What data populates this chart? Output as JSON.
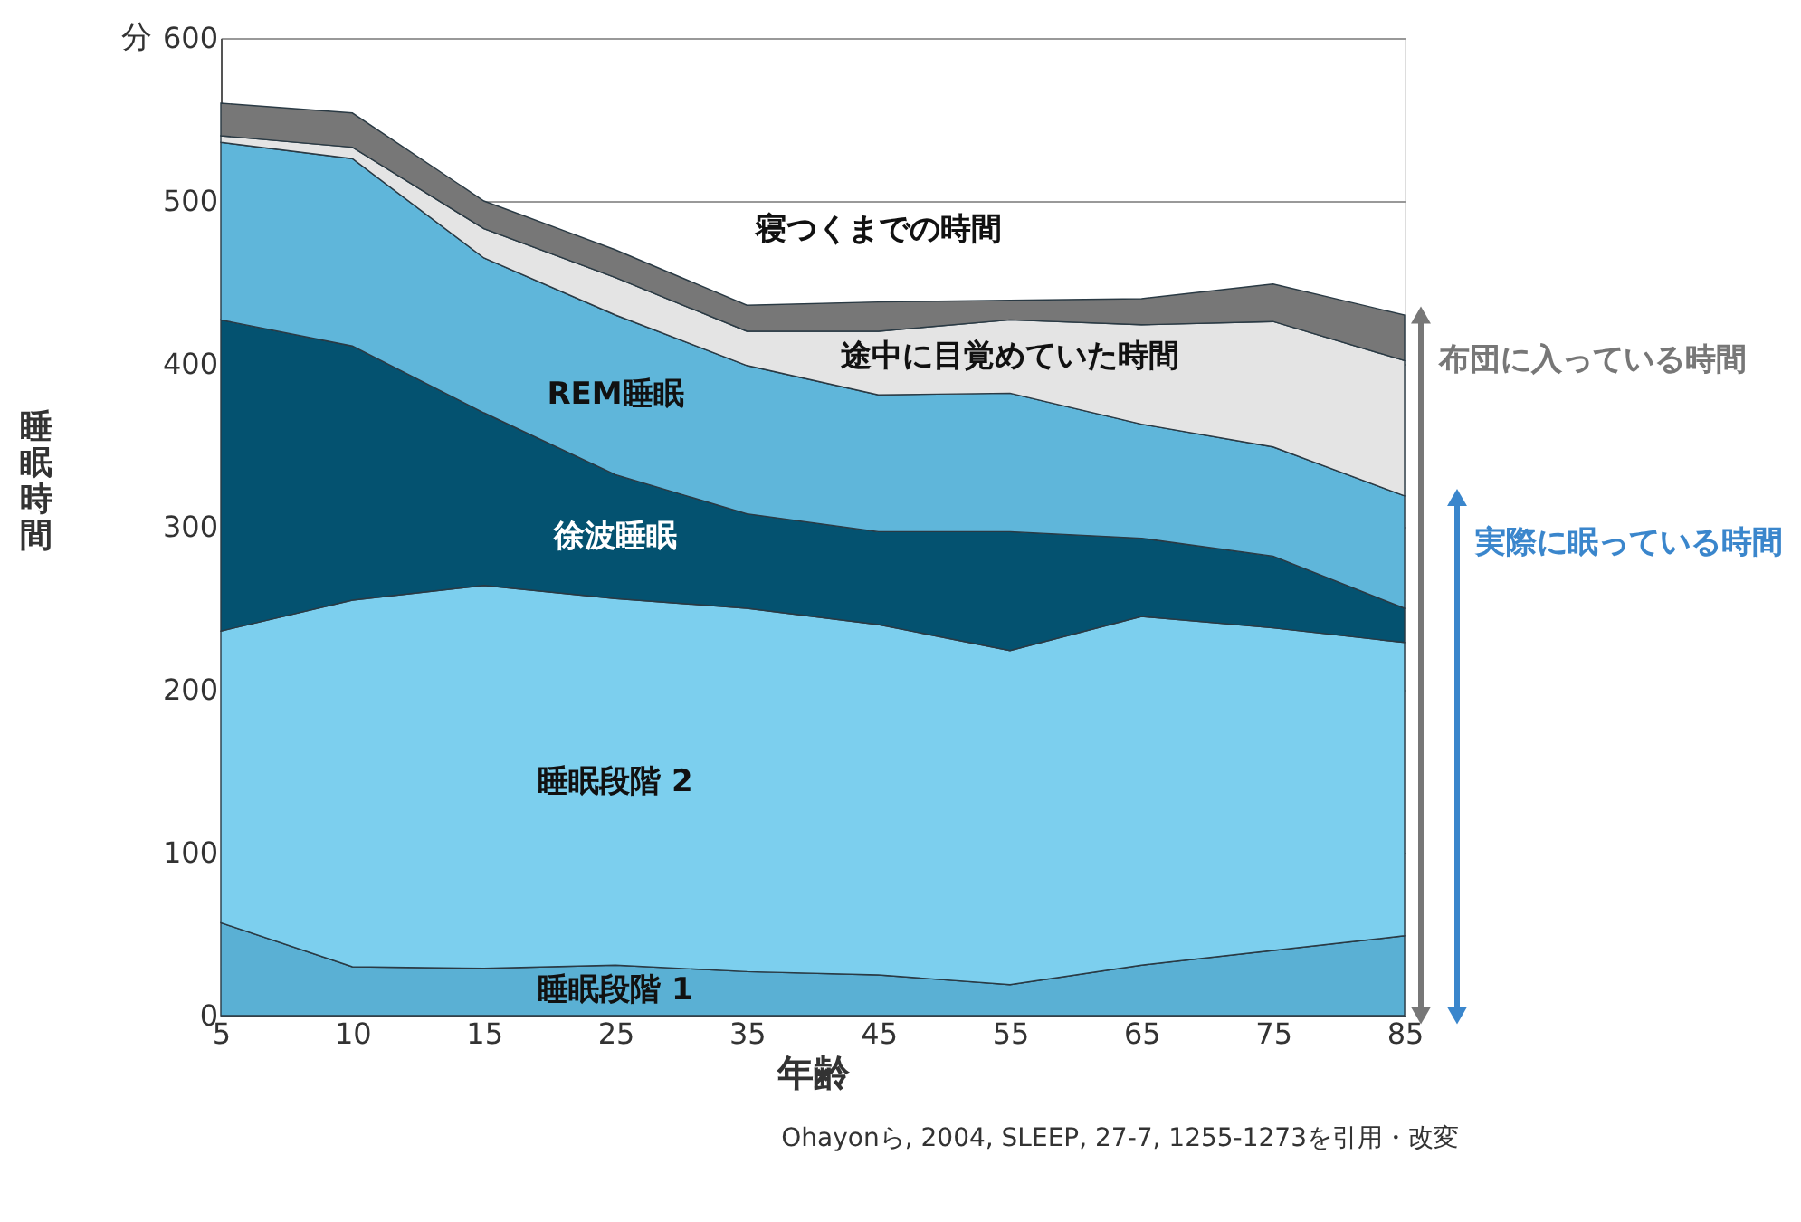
{
  "chart_data": {
    "type": "area",
    "stacked": true,
    "xlabel": "年齢",
    "ylabel": "睡眠時間",
    "categories": [
      "5",
      "10",
      "15",
      "25",
      "35",
      "45",
      "55",
      "65",
      "75",
      "85"
    ],
    "series": [
      {
        "name": "睡眠段階 1",
        "color": "#5ab0d4",
        "values": [
          57,
          30,
          29,
          31,
          27,
          25,
          19,
          31,
          40,
          49
        ]
      },
      {
        "name": "睡眠段階 2",
        "color": "#7ccfee",
        "values": [
          179,
          225,
          235,
          225,
          223,
          215,
          205,
          214,
          198,
          180
        ]
      },
      {
        "name": "徐波睡眠",
        "color": "#045270",
        "values": [
          191,
          156,
          106,
          76,
          58,
          57,
          73,
          48,
          44,
          21
        ]
      },
      {
        "name": "REM睡眠",
        "color": "#5fb6da",
        "values": [
          109,
          115,
          95,
          98,
          91,
          84,
          85,
          70,
          67,
          69
        ]
      },
      {
        "name": "途中に目覚めていた時間",
        "color": "#e4e4e4",
        "values": [
          4,
          7,
          18,
          23,
          21,
          39,
          45,
          61,
          77,
          83
        ]
      },
      {
        "name": "寝つくまでの時間",
        "color": "#777777",
        "values": [
          20,
          21,
          17,
          17,
          16,
          18,
          12,
          16,
          23,
          28
        ]
      }
    ],
    "ylim": [
      0,
      600
    ],
    "yticks": [
      0,
      100,
      200,
      300,
      400,
      500,
      600
    ],
    "grid": "y",
    "annotations": [
      "分",
      {
        "text": "布団に入っている時間",
        "x": "85",
        "y": 430
      },
      {
        "text": "実際に眠っている時間",
        "x": "85",
        "y": 318
      },
      "Ohayonら, 2004, SLEEP, 27-7, 1255-1273を引用・改変"
    ]
  }
}
